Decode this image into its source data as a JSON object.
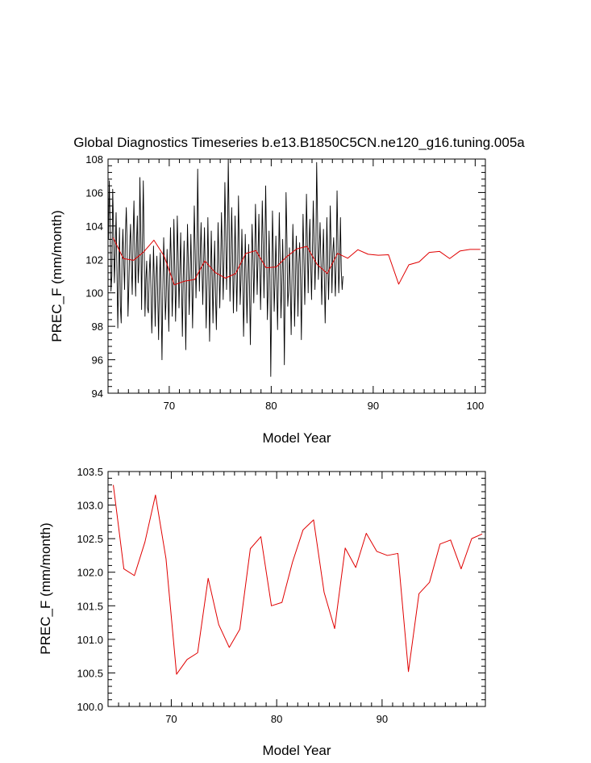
{
  "colors": {
    "monthly": "#000000",
    "annual": "#e00000",
    "axis": "#000000",
    "background": "#ffffff"
  },
  "chart_data": [
    {
      "type": "line",
      "title": "Global Diagnostics Timeseries b.e13.B1850C5CN.ne120_g16.tuning.005a",
      "xlabel": "Model Year",
      "ylabel": "PREC_F (mm/month)",
      "xlim": [
        64,
        101
      ],
      "ylim": [
        94,
        108
      ],
      "xticks": [
        70,
        80,
        90,
        100
      ],
      "xtick_labels": [
        "70",
        "80",
        "90",
        "100"
      ],
      "yticks": [
        94,
        96,
        98,
        100,
        102,
        104,
        106,
        108
      ],
      "ytick_labels": [
        "94",
        "96",
        "98",
        "100",
        "102",
        "104",
        "106",
        "108"
      ],
      "series": [
        {
          "name": "monthly",
          "color": "#000000",
          "x_start": 64.04,
          "x_step": 0.08333,
          "values": [
            103.2,
            106.7,
            104.1,
            100.1,
            101.0,
            106.2,
            103.9,
            100.6,
            102.4,
            104.8,
            101.3,
            97.9,
            101.2,
            103.9,
            99.2,
            98.2,
            102.0,
            103.8,
            101.8,
            100.2,
            103.5,
            105.1,
            102.9,
            98.6,
            100.4,
            102.8,
            104.1,
            101.7,
            99.9,
            103.4,
            105.5,
            102.2,
            99.8,
            102.9,
            104.6,
            100.6,
            101.8,
            106.9,
            103.7,
            99.0,
            103.2,
            106.7,
            102.8,
            98.6,
            100.8,
            101.9,
            99.1,
            98.8,
            101.2,
            102.3,
            100.3,
            97.6,
            99.5,
            102.8,
            100.7,
            98.0,
            100.9,
            102.2,
            99.8,
            97.2,
            100.6,
            102.4,
            99.6,
            96.0,
            100.2,
            103.3,
            101.2,
            98.4,
            99.8,
            102.6,
            100.4,
            97.7,
            101.0,
            103.9,
            101.8,
            98.6,
            100.5,
            104.4,
            101.6,
            98.3,
            100.7,
            104.6,
            102.3,
            99.1,
            101.2,
            103.6,
            100.5,
            97.4,
            100.8,
            103.1,
            100.2,
            96.6,
            100.4,
            104.1,
            101.8,
            98.7,
            101.0,
            103.5,
            100.8,
            97.9,
            101.4,
            105.2,
            102.6,
            99.7,
            101.9,
            107.4,
            103.3,
            100.1,
            102.2,
            104.2,
            101.6,
            99.3,
            101.8,
            103.9,
            100.9,
            97.9,
            100.6,
            104.5,
            101.2,
            97.1,
            100.4,
            103.7,
            101.1,
            98.2,
            101.0,
            103.1,
            99.8,
            97.8,
            100.9,
            104.2,
            101.9,
            99.1,
            101.6,
            104.8,
            102.5,
            99.6,
            102.1,
            106.6,
            103.8,
            100.2,
            102.8,
            108.0,
            104.2,
            99.5,
            101.9,
            105.1,
            102.4,
            98.8,
            101.3,
            104.6,
            101.7,
            98.9,
            101.6,
            105.8,
            102.7,
            99.3,
            100.8,
            103.8,
            101.2,
            97.4,
            100.1,
            103.5,
            101.0,
            98.2,
            100.7,
            102.9,
            100.3,
            96.9,
            100.6,
            104.1,
            102.3,
            99.4,
            101.8,
            105.3,
            102.8,
            99.9,
            102.1,
            104.7,
            101.9,
            99.0,
            101.6,
            105.5,
            103.1,
            99.7,
            102.4,
            106.4,
            103.0,
            98.4,
            100.2,
            103.7,
            101.1,
            95.0,
            99.8,
            104.9,
            102.5,
            98.9,
            100.6,
            103.4,
            100.8,
            97.8,
            101.2,
            104.8,
            102.1,
            98.5,
            100.3,
            103.2,
            100.6,
            95.7,
            100.9,
            106.0,
            103.3,
            99.2,
            100.1,
            102.7,
            100.4,
            97.5,
            100.8,
            104.1,
            101.9,
            98.0,
            100.5,
            103.4,
            101.6,
            98.6,
            101.7,
            103.0,
            100.9,
            97.2,
            101.1,
            104.7,
            102.2,
            99.3,
            101.8,
            105.9,
            103.3,
            100.0,
            102.6,
            104.4,
            101.8,
            99.6,
            102.5,
            105.5,
            103.0,
            100.2,
            102.3,
            107.8,
            104.6,
            100.8,
            102.4,
            104.2,
            101.9,
            99.3,
            101.7,
            103.8,
            101.2,
            98.2,
            100.9,
            104.5,
            102.0,
            99.6,
            101.8,
            105.2,
            102.7,
            100.0,
            102.4,
            103.3,
            101.6,
            99.8,
            101.9,
            106.1,
            103.1,
            100.0,
            101.6,
            104.5,
            101.3,
            100.2,
            101.0
          ]
        },
        {
          "name": "annual mean",
          "color": "#e00000",
          "x": [
            64.5,
            65.5,
            66.5,
            67.5,
            68.5,
            69.5,
            70.5,
            71.5,
            72.5,
            73.5,
            74.5,
            75.5,
            76.5,
            77.5,
            78.5,
            79.5,
            80.5,
            81.5,
            82.5,
            83.5,
            84.5,
            85.5,
            86.5,
            87.5,
            88.5,
            89.5,
            90.5,
            91.5,
            92.5,
            93.5,
            94.5,
            95.5,
            96.5,
            97.5,
            98.5,
            99.5,
            100.5
          ],
          "values": [
            103.3,
            102.05,
            101.95,
            102.45,
            103.15,
            102.2,
            100.48,
            100.7,
            100.8,
            101.91,
            101.22,
            100.88,
            101.15,
            102.35,
            102.53,
            101.5,
            101.55,
            102.15,
            102.63,
            102.78,
            101.7,
            101.16,
            102.36,
            102.07,
            102.58,
            102.31,
            102.25,
            102.28,
            100.52,
            101.68,
            101.85,
            102.42,
            102.48,
            102.05,
            102.5,
            102.6,
            102.6
          ]
        }
      ]
    },
    {
      "type": "line",
      "title": "",
      "xlabel": "Model Year",
      "ylabel": "PREC_F (mm/month)",
      "xlim": [
        64,
        99.8
      ],
      "ylim": [
        100.0,
        103.5
      ],
      "xticks": [
        70,
        80,
        90
      ],
      "xtick_labels": [
        "70",
        "80",
        "90"
      ],
      "yticks": [
        100.0,
        100.5,
        101.0,
        101.5,
        102.0,
        102.5,
        103.0,
        103.5
      ],
      "ytick_labels": [
        "100.0",
        "100.5",
        "101.0",
        "101.5",
        "102.0",
        "102.5",
        "103.0",
        "103.5"
      ],
      "series": [
        {
          "name": "annual mean",
          "color": "#e00000",
          "x": [
            64.5,
            65.5,
            66.5,
            67.5,
            68.5,
            69.5,
            70.5,
            71.5,
            72.5,
            73.5,
            74.5,
            75.5,
            76.5,
            77.5,
            78.5,
            79.5,
            80.5,
            81.5,
            82.5,
            83.5,
            84.5,
            85.5,
            86.5,
            87.5,
            88.5,
            89.5,
            90.5,
            91.5,
            92.5,
            93.5,
            94.5,
            95.5,
            96.5,
            97.5,
            98.5,
            99.5
          ],
          "values": [
            103.3,
            102.05,
            101.95,
            102.45,
            103.15,
            102.2,
            100.48,
            100.7,
            100.8,
            101.91,
            101.22,
            100.88,
            101.15,
            102.35,
            102.53,
            101.5,
            101.55,
            102.15,
            102.63,
            102.78,
            101.7,
            101.16,
            102.36,
            102.07,
            102.58,
            102.31,
            102.25,
            102.28,
            100.52,
            101.68,
            101.85,
            102.42,
            102.48,
            102.05,
            102.5,
            102.57
          ]
        }
      ]
    }
  ]
}
